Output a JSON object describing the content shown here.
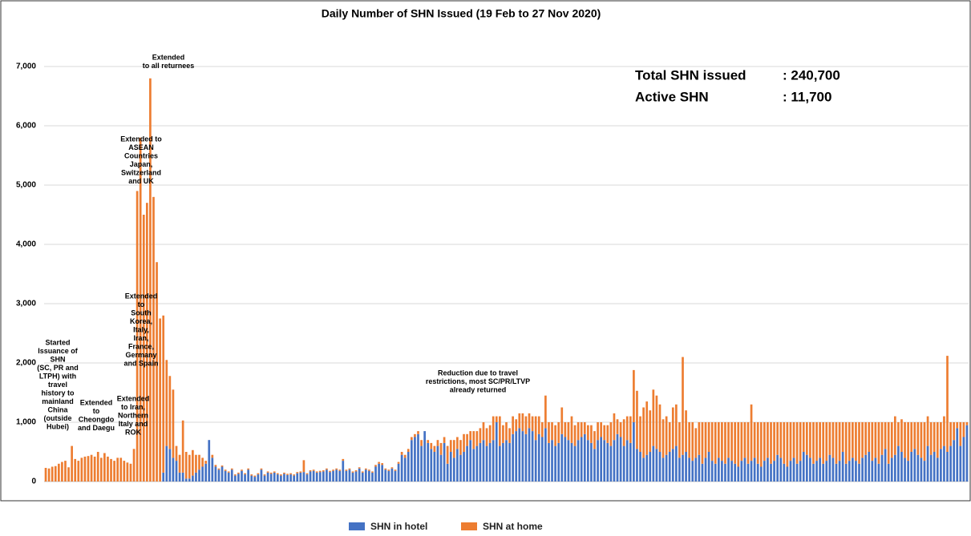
{
  "chart_data": {
    "type": "bar",
    "stacked": true,
    "title": "Daily Number of SHN Issued (19 Feb to 27 Nov 2020)",
    "ylim": [
      0,
      8000
    ],
    "yticks": [
      0,
      {
        "value": 1000,
        "label": "1,000"
      },
      {
        "value": 2000,
        "label": "2,000"
      },
      {
        "value": 3000,
        "label": "3,000"
      },
      {
        "value": 4000,
        "label": "4,000"
      },
      {
        "value": 5000,
        "label": "5,000"
      },
      {
        "value": 6000,
        "label": "6,000"
      },
      {
        "value": 7000,
        "label": "7,000"
      }
    ],
    "grid": true,
    "legend": "bottom",
    "series": [
      {
        "name": "SHN in hotel",
        "color": "#4472c4",
        "values": [
          0,
          0,
          0,
          0,
          0,
          0,
          0,
          0,
          0,
          0,
          0,
          0,
          0,
          0,
          0,
          0,
          0,
          0,
          0,
          0,
          0,
          0,
          0,
          0,
          0,
          0,
          0,
          0,
          0,
          0,
          0,
          0,
          0,
          0,
          0,
          0,
          150,
          600,
          550,
          400,
          350,
          150,
          150,
          50,
          50,
          100,
          150,
          200,
          250,
          300,
          700,
          400,
          250,
          200,
          250,
          180,
          150,
          200,
          100,
          130,
          180,
          120,
          200,
          100,
          80,
          120,
          200,
          100,
          150,
          130,
          150,
          120,
          100,
          130,
          110,
          120,
          100,
          140,
          150,
          160,
          120,
          170,
          180,
          150,
          160,
          170,
          200,
          160,
          180,
          200,
          180,
          350,
          180,
          200,
          150,
          170,
          220,
          150,
          200,
          180,
          150,
          250,
          300,
          280,
          200,
          180,
          220,
          180,
          300,
          450,
          400,
          500,
          700,
          750,
          800,
          600,
          850,
          650,
          550,
          500,
          600,
          450,
          650,
          300,
          500,
          400,
          550,
          450,
          500,
          600,
          700,
          550,
          600,
          650,
          700,
          600,
          650,
          700,
          1000,
          600,
          650,
          700,
          650,
          800,
          850,
          900,
          850,
          800,
          900,
          850,
          700,
          800,
          750,
          900,
          650,
          700,
          600,
          650,
          800,
          750,
          700,
          650,
          600,
          700,
          750,
          800,
          700,
          650,
          550,
          700,
          750,
          700,
          650,
          600,
          700,
          800,
          750,
          600,
          700,
          650,
          1000,
          550,
          500,
          400,
          450,
          500,
          600,
          550,
          500,
          400,
          450,
          500,
          550,
          600,
          400,
          450,
          500,
          400,
          350,
          400,
          450,
          300,
          400,
          500,
          350,
          300,
          400,
          350,
          300,
          400,
          350,
          300,
          250,
          350,
          400,
          300,
          350,
          400,
          300,
          250,
          350,
          400,
          300,
          350,
          450,
          400,
          300,
          250,
          350,
          400,
          300,
          350,
          500,
          450,
          400,
          300,
          350,
          400,
          300,
          350,
          450,
          400,
          300,
          350,
          500,
          300,
          350,
          400,
          350,
          300,
          400,
          450,
          500,
          350,
          400,
          300,
          450,
          550,
          300,
          400,
          450,
          600,
          500,
          400,
          350,
          500,
          550,
          450,
          400,
          350,
          600,
          450,
          500,
          400,
          550,
          600,
          500,
          600,
          700,
          900,
          600,
          750,
          950
        ]
      },
      {
        "name": "SHN at home",
        "color": "#ed7d31",
        "values": [
          230,
          220,
          250,
          260,
          300,
          330,
          350,
          240,
          600,
          380,
          350,
          400,
          420,
          430,
          450,
          420,
          500,
          400,
          480,
          420,
          380,
          350,
          400,
          400,
          350,
          320,
          300,
          550,
          4900,
          5800,
          4500,
          4700,
          6800,
          4800,
          3700,
          2750,
          2650,
          1450,
          1230,
          1150,
          250,
          300,
          880,
          450,
          400,
          430,
          300,
          250,
          150,
          50,
          0,
          50,
          30,
          20,
          20,
          20,
          20,
          20,
          20,
          20,
          20,
          20,
          20,
          20,
          20,
          20,
          20,
          20,
          20,
          20,
          20,
          20,
          20,
          20,
          20,
          20,
          20,
          20,
          20,
          200,
          20,
          20,
          20,
          20,
          20,
          20,
          20,
          20,
          20,
          20,
          20,
          30,
          20,
          20,
          20,
          20,
          20,
          20,
          20,
          20,
          20,
          30,
          30,
          30,
          20,
          20,
          20,
          20,
          30,
          50,
          50,
          50,
          50,
          50,
          50,
          100,
          0,
          50,
          100,
          100,
          100,
          200,
          100,
          300,
          200,
          300,
          200,
          250,
          300,
          200,
          150,
          300,
          250,
          250,
          300,
          300,
          300,
          400,
          100,
          500,
          300,
          300,
          250,
          300,
          200,
          250,
          300,
          300,
          250,
          250,
          400,
          300,
          250,
          550,
          350,
          300,
          350,
          350,
          450,
          250,
          300,
          450,
          350,
          300,
          250,
          200,
          250,
          300,
          300,
          300,
          250,
          250,
          300,
          400,
          450,
          250,
          250,
          450,
          400,
          450,
          880,
          980,
          600,
          850,
          900,
          700,
          950,
          900,
          800,
          650,
          650,
          500,
          700,
          700,
          600,
          1650,
          700,
          600,
          650,
          500,
          550,
          700,
          600,
          500,
          650,
          700,
          600,
          650,
          700,
          600,
          650,
          700,
          750,
          650,
          600,
          700,
          950,
          600,
          700,
          750,
          650,
          600,
          700,
          650,
          550,
          600,
          700,
          750,
          650,
          600,
          700,
          650,
          500,
          550,
          600,
          700,
          650,
          600,
          700,
          650,
          550,
          600,
          700,
          650,
          500,
          700,
          650,
          600,
          650,
          700,
          600,
          550,
          500,
          650,
          600,
          700,
          550,
          450,
          700,
          600,
          650,
          400,
          550,
          600,
          650,
          500,
          450,
          550,
          600,
          650,
          500,
          550,
          500,
          600,
          450,
          500,
          1620,
          400,
          300,
          100,
          400,
          250,
          50
        ]
      }
    ],
    "annotations": [
      {
        "lines": [
          "Started",
          "Issuance of",
          "SHN",
          "(SC, PR and",
          "LTPH) with",
          "travel",
          "history to",
          "mainland",
          "China",
          "(outside",
          "Hubei)"
        ]
      },
      {
        "lines": [
          "Extended",
          "to",
          "Cheongdo",
          "and Daegu"
        ]
      },
      {
        "lines": [
          "Extended",
          "to Iran,",
          "Northern",
          "Italy and",
          "ROK"
        ]
      },
      {
        "lines": [
          "Extended",
          "to",
          "South",
          "Korea,",
          "Italy,",
          "Iran,",
          "France,",
          "Germany",
          "and Spain"
        ]
      },
      {
        "lines": [
          "Extended to",
          "ASEAN",
          "Countries",
          "Japan,",
          "Switzerland",
          "and UK"
        ]
      },
      {
        "lines": [
          "Extended",
          "to all returnees"
        ]
      },
      {
        "lines": [
          "Reduction due to travel",
          "restrictions, most SC/PR/LTVP",
          "already returned"
        ]
      }
    ],
    "stats": [
      {
        "label": "Total SHN issued",
        "value": ": 240,700"
      },
      {
        "label": "Active SHN",
        "value": ": 11,700"
      }
    ]
  }
}
